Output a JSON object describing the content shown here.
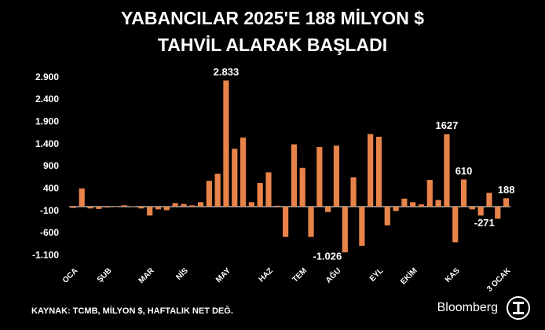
{
  "chart_data": {
    "type": "bar",
    "title": "YABANCILAR 2025'E 188 MİLYON $",
    "subtitle": "TAHVİL ALARAK BAŞLADI",
    "source": "KAYNAK: TCMB, MİLYON $, HAFTALIK NET DEĞ.",
    "brand": "Bloomberg",
    "color": "#e8834a",
    "categories": [
      "OCA",
      null,
      null,
      null,
      "ŞUB",
      null,
      null,
      null,
      null,
      "MAR",
      null,
      null,
      null,
      "NİS",
      null,
      null,
      null,
      null,
      "MAY",
      null,
      null,
      null,
      null,
      "HAZ",
      null,
      null,
      null,
      "TEM",
      null,
      null,
      null,
      "AĞU",
      null,
      null,
      null,
      null,
      "EYL",
      null,
      null,
      null,
      "EKİM",
      null,
      null,
      null,
      null,
      "KAS",
      null,
      null,
      null,
      null,
      null,
      "3 OCAK"
    ],
    "values": [
      -30,
      410,
      -40,
      -50,
      -20,
      -10,
      30,
      10,
      -40,
      -200,
      -60,
      -80,
      80,
      60,
      30,
      100,
      580,
      740,
      2833,
      1300,
      1550,
      100,
      530,
      770,
      20,
      -680,
      1400,
      870,
      -680,
      1340,
      -120,
      1370,
      -1026,
      660,
      -880,
      1630,
      1570,
      -420,
      -100,
      180,
      100,
      50,
      600,
      150,
      1627,
      -800,
      610,
      -60,
      -200,
      310,
      -271,
      188
    ],
    "value_labels": [
      null,
      null,
      null,
      null,
      null,
      null,
      null,
      null,
      null,
      null,
      null,
      null,
      null,
      null,
      null,
      null,
      null,
      null,
      "2.833",
      null,
      null,
      null,
      null,
      null,
      null,
      null,
      null,
      null,
      null,
      null,
      null,
      null,
      "-1.026",
      null,
      null,
      null,
      null,
      null,
      null,
      null,
      null,
      null,
      null,
      null,
      "1627",
      null,
      "610",
      null,
      null,
      null,
      "-271",
      "188"
    ],
    "ylim": [
      -1200,
      3000
    ],
    "yticks": [
      {
        "value": 2900,
        "label": "2.900"
      },
      {
        "value": 2400,
        "label": "2.400"
      },
      {
        "value": 1900,
        "label": "1.900"
      },
      {
        "value": 1400,
        "label": "1.400"
      },
      900,
      400,
      -100,
      -600,
      {
        "value": -1100,
        "label": "-1.100"
      }
    ],
    "grid": false
  }
}
